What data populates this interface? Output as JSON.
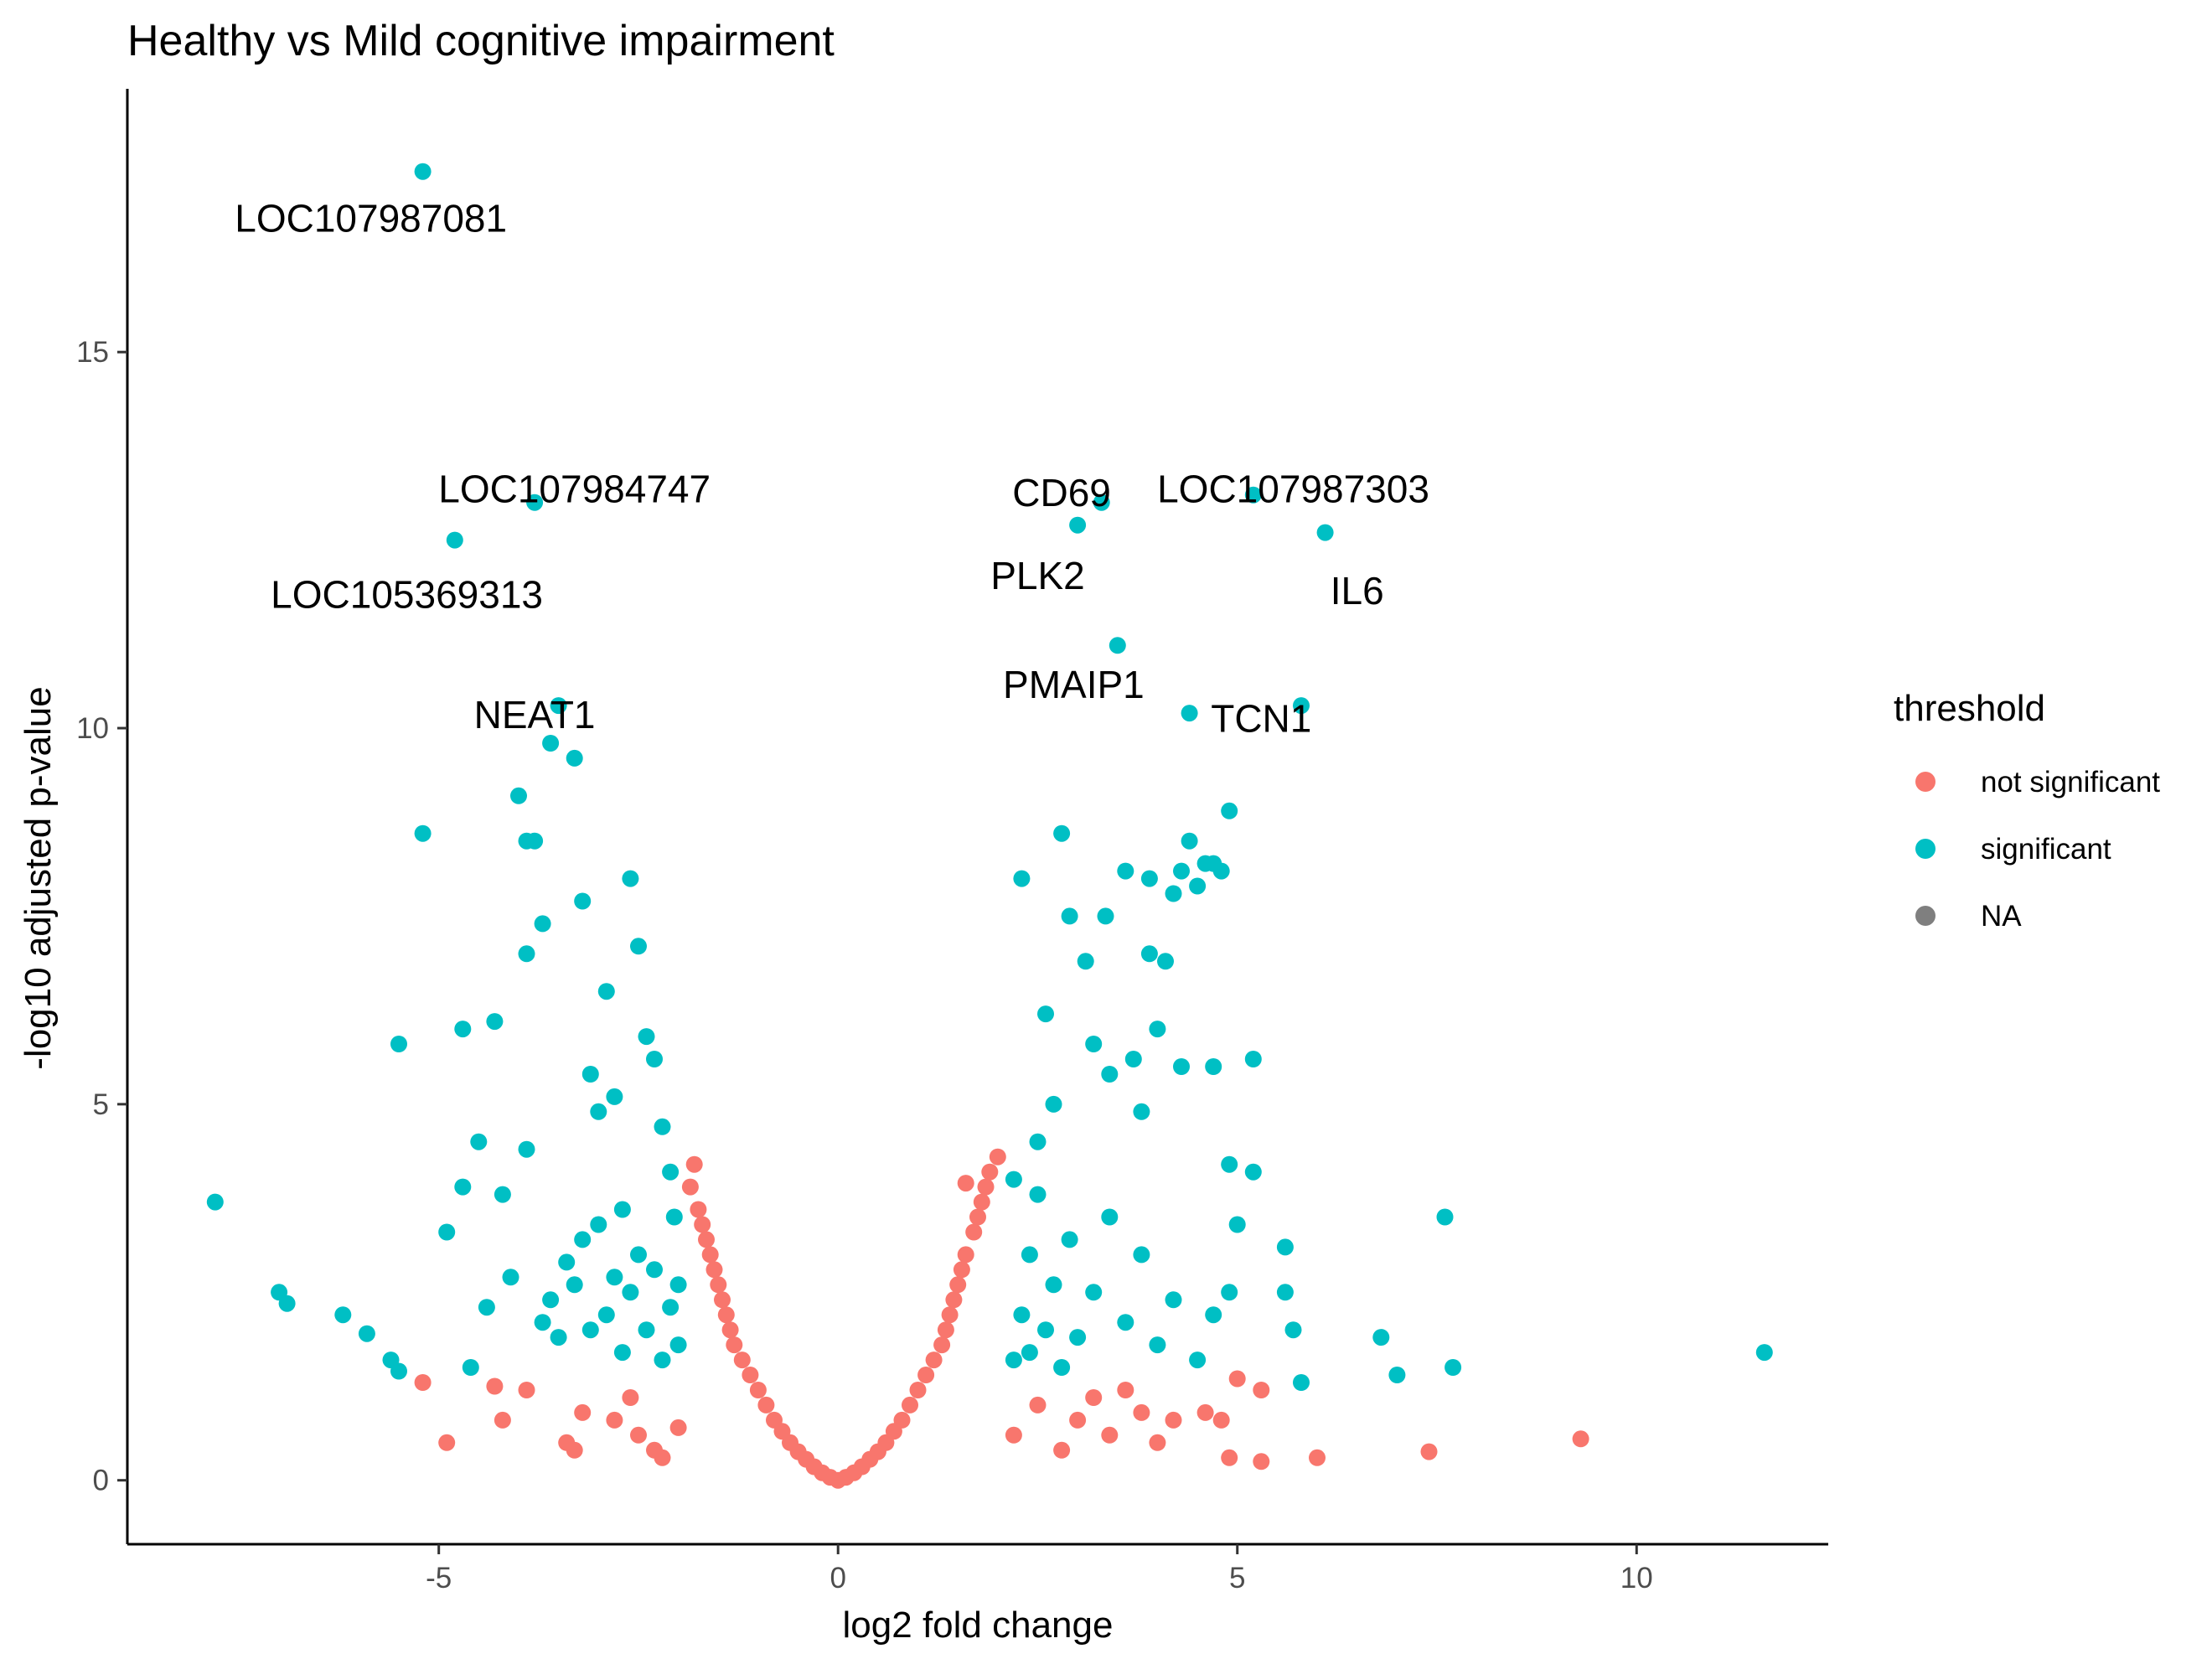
{
  "chart_data": {
    "type": "scatter",
    "title": "Healthy vs Mild cognitive impairment",
    "xlabel": "log2 fold change",
    "ylabel": "-log10 adjusted p-value",
    "xlim": [
      -8.9,
      12.4
    ],
    "ylim": [
      -0.85,
      18.5
    ],
    "x_ticks": [
      -5,
      0,
      5,
      10
    ],
    "y_ticks": [
      0,
      5,
      10,
      15
    ],
    "grid": false,
    "legend": {
      "title": "threshold",
      "position": "right",
      "entries": [
        {
          "label": "not significant",
          "color": "#F8766D"
        },
        {
          "label": "significant",
          "color": "#00BFC4"
        },
        {
          "label": "NA",
          "color": "#7F7F7F"
        }
      ]
    },
    "colors": {
      "not_significant": "#F8766D",
      "significant": "#00BFC4",
      "na": "#7F7F7F"
    },
    "annotations": [
      {
        "text": "LOC107987081",
        "x": -5.85,
        "y": 16.6
      },
      {
        "text": "LOC107984747",
        "x": -3.3,
        "y": 13.0
      },
      {
        "text": "LOC105369313",
        "x": -5.4,
        "y": 11.6
      },
      {
        "text": "NEAT1",
        "x": -3.8,
        "y": 10.0
      },
      {
        "text": "CD69",
        "x": 2.8,
        "y": 12.95
      },
      {
        "text": "LOC107987303",
        "x": 5.7,
        "y": 13.0
      },
      {
        "text": "PLK2",
        "x": 2.5,
        "y": 11.85
      },
      {
        "text": "IL6",
        "x": 6.5,
        "y": 11.65
      },
      {
        "text": "PMAIP1",
        "x": 2.95,
        "y": 10.4
      },
      {
        "text": "TCN1",
        "x": 5.3,
        "y": 9.95
      }
    ],
    "series": [
      {
        "name": "not significant",
        "points": [
          [
            -5.2,
            1.3
          ],
          [
            -4.9,
            0.5
          ],
          [
            -4.2,
            0.8
          ],
          [
            -4.3,
            1.25
          ],
          [
            -3.9,
            1.2
          ],
          [
            -3.4,
            0.5
          ],
          [
            -3.3,
            0.4
          ],
          [
            -3.2,
            0.9
          ],
          [
            -2.8,
            0.8
          ],
          [
            -2.6,
            1.1
          ],
          [
            -2.5,
            0.6
          ],
          [
            -2.3,
            0.4
          ],
          [
            -2.2,
            0.3
          ],
          [
            -2.0,
            0.7
          ],
          [
            -1.8,
            4.2
          ],
          [
            -1.85,
            3.9
          ],
          [
            -1.75,
            3.6
          ],
          [
            -1.7,
            3.4
          ],
          [
            -1.65,
            3.2
          ],
          [
            -1.6,
            3.0
          ],
          [
            -1.55,
            2.8
          ],
          [
            -1.5,
            2.6
          ],
          [
            -1.45,
            2.4
          ],
          [
            -1.4,
            2.2
          ],
          [
            -1.35,
            2.0
          ],
          [
            -1.3,
            1.8
          ],
          [
            -1.2,
            1.6
          ],
          [
            -1.1,
            1.4
          ],
          [
            -1.0,
            1.2
          ],
          [
            -0.9,
            1.0
          ],
          [
            -0.8,
            0.8
          ],
          [
            -0.7,
            0.65
          ],
          [
            -0.6,
            0.5
          ],
          [
            -0.5,
            0.38
          ],
          [
            -0.4,
            0.28
          ],
          [
            -0.3,
            0.18
          ],
          [
            -0.2,
            0.1
          ],
          [
            -0.1,
            0.04
          ],
          [
            0.0,
            0.0
          ],
          [
            0.1,
            0.04
          ],
          [
            0.2,
            0.1
          ],
          [
            0.3,
            0.18
          ],
          [
            0.4,
            0.28
          ],
          [
            0.5,
            0.38
          ],
          [
            0.6,
            0.5
          ],
          [
            0.7,
            0.65
          ],
          [
            0.8,
            0.8
          ],
          [
            0.9,
            1.0
          ],
          [
            1.0,
            1.2
          ],
          [
            1.1,
            1.4
          ],
          [
            1.2,
            1.6
          ],
          [
            1.3,
            1.8
          ],
          [
            1.35,
            2.0
          ],
          [
            1.4,
            2.2
          ],
          [
            1.45,
            2.4
          ],
          [
            1.5,
            2.6
          ],
          [
            1.55,
            2.8
          ],
          [
            1.6,
            3.0
          ],
          [
            1.7,
            3.3
          ],
          [
            1.75,
            3.5
          ],
          [
            1.8,
            3.7
          ],
          [
            1.85,
            3.9
          ],
          [
            1.9,
            4.1
          ],
          [
            2.0,
            4.3
          ],
          [
            1.6,
            3.95
          ],
          [
            2.2,
            0.6
          ],
          [
            2.5,
            1.0
          ],
          [
            2.8,
            0.4
          ],
          [
            3.0,
            0.8
          ],
          [
            3.2,
            1.1
          ],
          [
            3.4,
            0.6
          ],
          [
            3.6,
            1.2
          ],
          [
            3.8,
            0.9
          ],
          [
            4.0,
            0.5
          ],
          [
            4.2,
            0.8
          ],
          [
            4.6,
            0.9
          ],
          [
            4.8,
            0.8
          ],
          [
            5.0,
            1.35
          ],
          [
            4.9,
            0.3
          ],
          [
            5.3,
            1.2
          ],
          [
            5.3,
            0.25
          ],
          [
            6.0,
            0.3
          ],
          [
            7.4,
            0.38
          ],
          [
            9.3,
            0.55
          ]
        ]
      },
      {
        "name": "significant",
        "points": [
          [
            -7.8,
            3.7
          ],
          [
            -7.0,
            2.5
          ],
          [
            -6.9,
            2.35
          ],
          [
            -6.2,
            2.2
          ],
          [
            -5.9,
            1.95
          ],
          [
            -5.6,
            1.6
          ],
          [
            -5.5,
            1.45
          ],
          [
            -5.2,
            8.6
          ],
          [
            -5.5,
            5.8
          ],
          [
            -4.9,
            3.3
          ],
          [
            -4.7,
            6.0
          ],
          [
            -4.5,
            4.5
          ],
          [
            -4.3,
            6.1
          ],
          [
            -4.1,
            2.7
          ],
          [
            -4.0,
            9.1
          ],
          [
            -3.9,
            8.5
          ],
          [
            -3.8,
            8.5
          ],
          [
            -3.9,
            7.0
          ],
          [
            -3.7,
            7.4
          ],
          [
            -3.5,
            10.3
          ],
          [
            -3.3,
            9.6
          ],
          [
            -3.2,
            7.7
          ],
          [
            -3.1,
            5.4
          ],
          [
            -3.0,
            4.9
          ],
          [
            -3.0,
            3.4
          ],
          [
            -2.9,
            6.5
          ],
          [
            -2.8,
            5.1
          ],
          [
            -2.7,
            3.6
          ],
          [
            -2.6,
            2.5
          ],
          [
            -2.6,
            8.0
          ],
          [
            -2.5,
            7.1
          ],
          [
            -2.4,
            5.9
          ],
          [
            -2.3,
            5.6
          ],
          [
            -2.2,
            4.7
          ],
          [
            -2.1,
            4.1
          ],
          [
            -2.05,
            3.5
          ],
          [
            -2.0,
            2.6
          ],
          [
            -2.0,
            1.8
          ],
          [
            -5.2,
            17.4
          ],
          [
            -4.8,
            12.5
          ],
          [
            -3.8,
            13.0
          ],
          [
            -3.6,
            9.8
          ],
          [
            -4.7,
            3.9
          ],
          [
            -4.6,
            1.5
          ],
          [
            -4.2,
            3.8
          ],
          [
            -3.9,
            4.4
          ],
          [
            -3.6,
            2.4
          ],
          [
            -3.5,
            1.9
          ],
          [
            -3.4,
            2.9
          ],
          [
            -3.2,
            3.2
          ],
          [
            -2.9,
            2.2
          ],
          [
            -2.8,
            2.7
          ],
          [
            -2.7,
            1.7
          ],
          [
            -2.5,
            3.0
          ],
          [
            -2.4,
            2.0
          ],
          [
            -2.3,
            2.8
          ],
          [
            -2.2,
            1.6
          ],
          [
            -2.1,
            2.3
          ],
          [
            -3.1,
            2.0
          ],
          [
            -3.3,
            2.6
          ],
          [
            -3.7,
            2.1
          ],
          [
            -4.4,
            2.3
          ],
          [
            2.3,
            2.2
          ],
          [
            2.2,
            1.6
          ],
          [
            2.4,
            3.0
          ],
          [
            2.3,
            8.0
          ],
          [
            2.5,
            4.5
          ],
          [
            2.6,
            6.2
          ],
          [
            2.7,
            5.0
          ],
          [
            2.8,
            8.6
          ],
          [
            2.9,
            7.5
          ],
          [
            3.0,
            12.7
          ],
          [
            3.1,
            6.9
          ],
          [
            3.2,
            5.8
          ],
          [
            3.3,
            13.0
          ],
          [
            3.35,
            7.5
          ],
          [
            3.4,
            5.4
          ],
          [
            3.5,
            11.1
          ],
          [
            3.6,
            8.1
          ],
          [
            3.7,
            5.6
          ],
          [
            3.8,
            4.9
          ],
          [
            3.9,
            8.0
          ],
          [
            3.9,
            7.0
          ],
          [
            4.0,
            6.0
          ],
          [
            4.1,
            6.9
          ],
          [
            4.2,
            7.8
          ],
          [
            4.3,
            8.1
          ],
          [
            4.4,
            8.5
          ],
          [
            4.4,
            10.2
          ],
          [
            4.5,
            7.9
          ],
          [
            4.6,
            8.2
          ],
          [
            4.7,
            8.2
          ],
          [
            4.8,
            8.1
          ],
          [
            4.9,
            8.9
          ],
          [
            4.7,
            5.5
          ],
          [
            4.3,
            5.5
          ],
          [
            4.9,
            4.2
          ],
          [
            5.2,
            4.1
          ],
          [
            5.2,
            13.1
          ],
          [
            5.2,
            5.6
          ],
          [
            5.6,
            3.1
          ],
          [
            5.6,
            2.5
          ],
          [
            5.7,
            2.0
          ],
          [
            5.8,
            10.3
          ],
          [
            5.8,
            1.3
          ],
          [
            6.1,
            12.6
          ],
          [
            6.8,
            1.9
          ],
          [
            7.0,
            1.4
          ],
          [
            7.7,
            1.5
          ],
          [
            7.6,
            3.5
          ],
          [
            11.6,
            1.7
          ],
          [
            2.5,
            3.8
          ],
          [
            2.7,
            2.6
          ],
          [
            2.9,
            3.2
          ],
          [
            3.0,
            1.9
          ],
          [
            3.2,
            2.5
          ],
          [
            3.4,
            3.5
          ],
          [
            3.6,
            2.1
          ],
          [
            3.8,
            3.0
          ],
          [
            4.0,
            1.8
          ],
          [
            4.2,
            2.4
          ],
          [
            4.5,
            1.6
          ],
          [
            4.7,
            2.2
          ],
          [
            4.9,
            2.5
          ],
          [
            5.0,
            3.4
          ],
          [
            2.2,
            4.0
          ],
          [
            2.4,
            1.7
          ],
          [
            2.6,
            2.0
          ],
          [
            2.8,
            1.5
          ]
        ]
      }
    ]
  }
}
